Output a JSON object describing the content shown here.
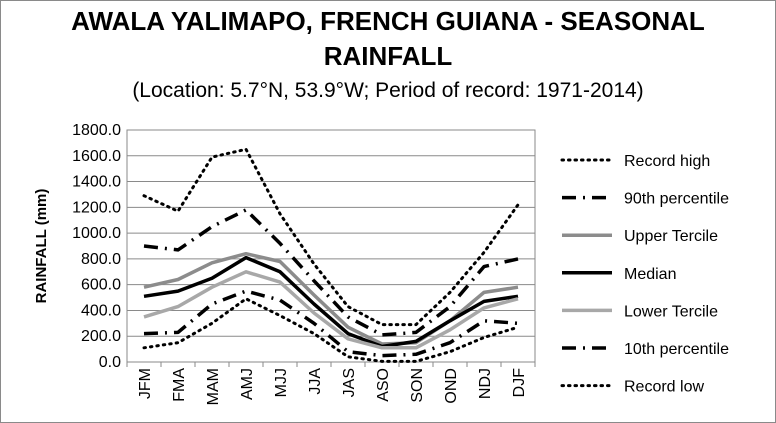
{
  "chart_data": {
    "type": "line",
    "title_line1": "AWALA YALIMAPO, FRENCH GUIANA - SEASONAL",
    "title_line2": "RAINFALL",
    "subtitle": "(Location: 5.7°N, 53.9°W; Period of record: 1971-2014)",
    "ylabel": "RAINFALL (mm)",
    "xlabel": "",
    "ylim": [
      0,
      1800
    ],
    "ytick_step": 200,
    "ytick_labels": [
      "0.0",
      "200.0",
      "400.0",
      "600.0",
      "800.0",
      "1000.0",
      "1200.0",
      "1400.0",
      "1600.0",
      "1800.0"
    ],
    "categories": [
      "JFM",
      "FMA",
      "MAM",
      "AMJ",
      "MJJ",
      "JJA",
      "JAS",
      "ASO",
      "SON",
      "OND",
      "NDJ",
      "DJF"
    ],
    "legend_position": "right",
    "grid": "horizontal",
    "series": [
      {
        "name": "Record high",
        "color": "#000000",
        "style": "dotted",
        "values": [
          1290,
          1170,
          1590,
          1650,
          1150,
          760,
          430,
          290,
          290,
          540,
          850,
          1220
        ]
      },
      {
        "name": "90th percentile",
        "color": "#000000",
        "style": "dashdot",
        "values": [
          900,
          870,
          1050,
          1180,
          920,
          630,
          350,
          210,
          230,
          430,
          740,
          800
        ]
      },
      {
        "name": "Upper Tercile",
        "color": "#8c8c8c",
        "style": "solid",
        "values": [
          580,
          640,
          770,
          840,
          780,
          520,
          270,
          140,
          150,
          320,
          540,
          580
        ]
      },
      {
        "name": "Median",
        "color": "#000000",
        "style": "solid",
        "values": [
          510,
          550,
          650,
          810,
          700,
          450,
          220,
          120,
          160,
          320,
          470,
          510
        ]
      },
      {
        "name": "Lower Tercile",
        "color": "#a8a8a8",
        "style": "solid",
        "values": [
          350,
          430,
          580,
          700,
          620,
          380,
          180,
          110,
          110,
          250,
          420,
          490
        ]
      },
      {
        "name": "10th percentile",
        "color": "#000000",
        "style": "dashdot",
        "values": [
          220,
          230,
          450,
          550,
          480,
          300,
          80,
          50,
          60,
          150,
          320,
          300
        ]
      },
      {
        "name": "Record low",
        "color": "#000000",
        "style": "dotted",
        "values": [
          110,
          150,
          300,
          490,
          360,
          220,
          40,
          5,
          5,
          80,
          190,
          270
        ]
      }
    ]
  }
}
